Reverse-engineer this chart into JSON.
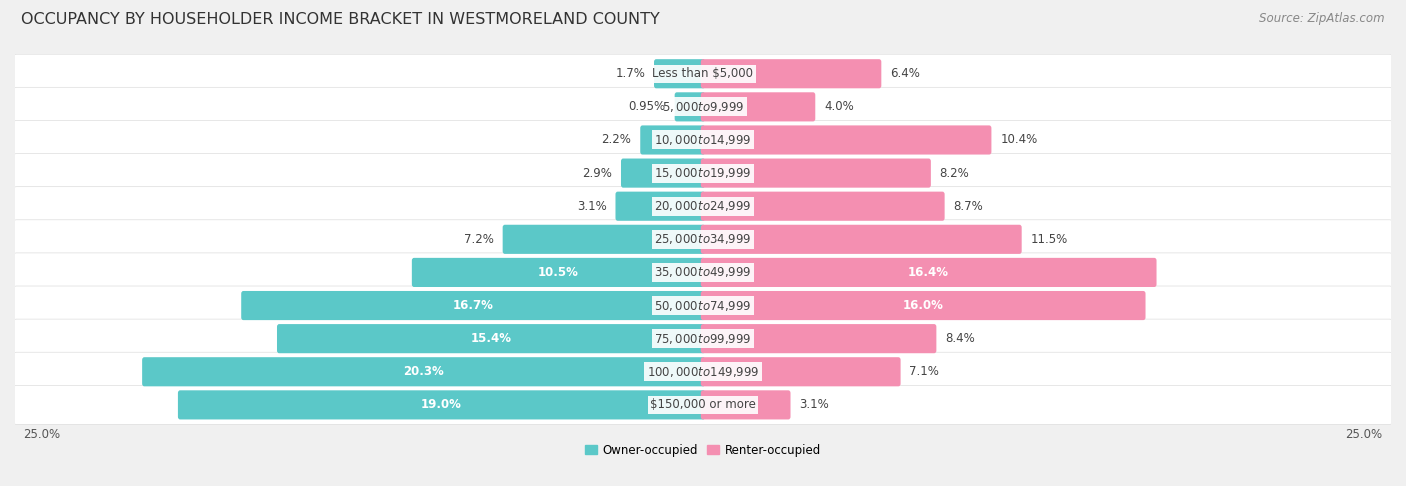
{
  "title": "OCCUPANCY BY HOUSEHOLDER INCOME BRACKET IN WESTMORELAND COUNTY",
  "source": "Source: ZipAtlas.com",
  "categories": [
    "Less than $5,000",
    "$5,000 to $9,999",
    "$10,000 to $14,999",
    "$15,000 to $19,999",
    "$20,000 to $24,999",
    "$25,000 to $34,999",
    "$35,000 to $49,999",
    "$50,000 to $74,999",
    "$75,000 to $99,999",
    "$100,000 to $149,999",
    "$150,000 or more"
  ],
  "owner_values": [
    1.7,
    0.95,
    2.2,
    2.9,
    3.1,
    7.2,
    10.5,
    16.7,
    15.4,
    20.3,
    19.0
  ],
  "renter_values": [
    6.4,
    4.0,
    10.4,
    8.2,
    8.7,
    11.5,
    16.4,
    16.0,
    8.4,
    7.1,
    3.1
  ],
  "owner_color": "#5BC8C8",
  "renter_color": "#F48FB1",
  "owner_label": "Owner-occupied",
  "renter_label": "Renter-occupied",
  "background_color": "#f0f0f0",
  "bar_background_color": "#ffffff",
  "row_bg_border_color": "#cccccc",
  "xlim": 25.0,
  "title_fontsize": 11.5,
  "source_fontsize": 8.5,
  "category_fontsize": 8.5,
  "value_fontsize": 8.5,
  "legend_fontsize": 8.5,
  "axis_label_fontsize": 8.5
}
